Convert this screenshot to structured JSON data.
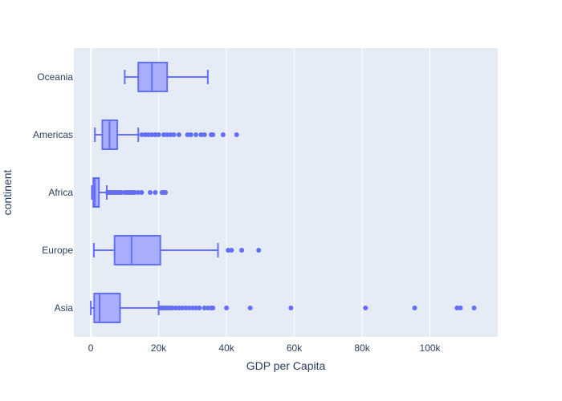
{
  "chart_data": {
    "type": "box",
    "orientation": "horizontal",
    "xlabel": "GDP per Capita",
    "ylabel": "continent",
    "xlim": [
      -5000,
      120000
    ],
    "x_ticks": [
      0,
      20000,
      40000,
      60000,
      80000,
      100000
    ],
    "x_tick_labels": [
      "0",
      "20k",
      "40k",
      "60k",
      "80k",
      "100k"
    ],
    "grid": true,
    "colors": {
      "box_line": "#636efa",
      "box_fill": "#a9aefc",
      "plot_bg": "#e5ecf6",
      "grid": "#ffffff",
      "text": "#2a3f5f"
    },
    "categories": [
      "Asia",
      "Europe",
      "Africa",
      "Americas",
      "Oceania"
    ],
    "boxes": [
      {
        "name": "Asia",
        "lowerfence": 0,
        "q1": 1000,
        "median": 2600,
        "q3": 8600,
        "upperfence": 20000,
        "outliers": [
          20500,
          21000,
          21500,
          22000,
          22500,
          23000,
          23500,
          24000,
          25000,
          26000,
          27000,
          28000,
          29000,
          30000,
          31000,
          32000,
          33500,
          34500,
          35500,
          36000,
          40000,
          47000,
          59000,
          81000,
          95500,
          108000,
          109000,
          113000
        ]
      },
      {
        "name": "Europe",
        "lowerfence": 900,
        "q1": 7000,
        "median": 12000,
        "q3": 20500,
        "upperfence": 37500,
        "outliers": [
          40500,
          41500,
          44500,
          49500
        ]
      },
      {
        "name": "Africa",
        "lowerfence": 300,
        "q1": 750,
        "median": 1200,
        "q3": 2400,
        "upperfence": 4700,
        "outliers": [
          4900,
          5200,
          5500,
          6000,
          6500,
          7000,
          7500,
          8000,
          8500,
          9000,
          10000,
          10500,
          11000,
          11500,
          12000,
          12500,
          13000,
          14000,
          15000,
          17500,
          19000,
          21000,
          21500,
          22000
        ]
      },
      {
        "name": "Americas",
        "lowerfence": 1200,
        "q1": 3400,
        "median": 5500,
        "q3": 7800,
        "upperfence": 14000,
        "outliers": [
          15000,
          16000,
          17000,
          18000,
          19000,
          20000,
          21500,
          22500,
          23500,
          24500,
          26000,
          28500,
          29500,
          31000,
          32500,
          33500,
          35500,
          36000,
          39000,
          43000
        ]
      },
      {
        "name": "Oceania",
        "lowerfence": 10000,
        "q1": 14000,
        "median": 18000,
        "q3": 22500,
        "upperfence": 34500,
        "outliers": []
      }
    ]
  }
}
